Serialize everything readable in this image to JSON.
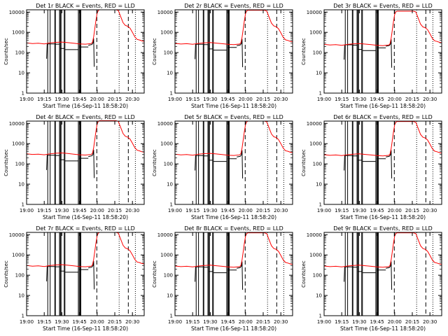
{
  "chart_data": {
    "type": "line",
    "layout": "3x3 grid",
    "xlabel": "Start Time (16-Sep-11 18:58:20)",
    "ylabel": "Counts/sec",
    "x_ticks": [
      "19:00",
      "19:15",
      "19:30",
      "19:45",
      "20:00",
      "20:15",
      "20:30"
    ],
    "x_tick_minutes": [
      0,
      15,
      30,
      45,
      60,
      75,
      90
    ],
    "xlim_minutes": [
      0,
      100
    ],
    "y_ticks": [
      "1",
      "10",
      "100",
      "1000",
      "10000"
    ],
    "y_tick_values": [
      1,
      10,
      100,
      1000,
      10000
    ],
    "ylim": [
      1,
      13000
    ],
    "log_y": true,
    "grid": false,
    "series_colors": {
      "events": "#000000",
      "lld": "#ff0000"
    },
    "events_minutes": [
      17,
      17.5,
      17.9,
      20
    ],
    "events_counts": [
      50,
      270,
      270,
      270
    ],
    "event_blocks": [
      {
        "start": 20,
        "end": 24,
        "counts": 270
      },
      {
        "start": 24.5,
        "end": 28,
        "counts": 260
      },
      {
        "start": 28.7,
        "end": 32,
        "counts": 160
      },
      {
        "start": 32.6,
        "end": 44,
        "counts": 140
      },
      {
        "start": 44.8,
        "end": 52.5,
        "counts": 190
      }
    ],
    "events_tail_minutes": [
      52.5,
      55.5,
      56.5,
      57,
      57.5
    ],
    "events_tail_counts": [
      230,
      250,
      300,
      500,
      20
    ],
    "lld_minutes": [
      0,
      5,
      10,
      15,
      20,
      25,
      30,
      35,
      40,
      45,
      50,
      55,
      56,
      57,
      58,
      59,
      60,
      61,
      62,
      64,
      66,
      68,
      70,
      72,
      74,
      76,
      78,
      80,
      82,
      84,
      86,
      88,
      90,
      92,
      94,
      96,
      98,
      100
    ],
    "lld_counts": [
      300,
      280,
      290,
      270,
      300,
      320,
      330,
      310,
      290,
      270,
      260,
      280,
      320,
      600,
      1500,
      4000,
      9000,
      12000,
      13000,
      13000,
      13000,
      13000,
      13000,
      13000,
      13000,
      13000,
      12000,
      6000,
      3000,
      2200,
      2000,
      1600,
      1000,
      600,
      450,
      420,
      380,
      360
    ],
    "vertical_lines": {
      "solid_minutes": [
        18,
        20,
        24,
        24.5,
        28,
        28.7,
        29.3,
        32,
        32.6,
        44,
        44.8,
        45.5,
        46.1
      ],
      "dashed_minutes": [
        59.7,
        86.5
      ],
      "dotted_minutes": [
        78.7,
        92.5
      ]
    },
    "panels": [
      {
        "title": "Det 1r BLACK = Events, RED = LLD",
        "events_scale": 1.0,
        "lld_scale": 1.0
      },
      {
        "title": "Det 2r BLACK = Events, RED = LLD",
        "events_scale": 0.95,
        "lld_scale": 0.95
      },
      {
        "title": "Det 3r BLACK = Events, RED = LLD",
        "events_scale": 0.9,
        "lld_scale": 0.85
      },
      {
        "title": "Det 4r BLACK = Events, RED = LLD",
        "events_scale": 1.0,
        "lld_scale": 1.05
      },
      {
        "title": "Det 5r BLACK = Events, RED = LLD",
        "events_scale": 0.95,
        "lld_scale": 1.0
      },
      {
        "title": "Det 6r BLACK = Events, RED = LLD",
        "events_scale": 0.95,
        "lld_scale": 0.95
      },
      {
        "title": "Det 7r BLACK = Events, RED = LLD",
        "events_scale": 1.0,
        "lld_scale": 1.0
      },
      {
        "title": "Det 8r BLACK = Events, RED = LLD",
        "events_scale": 0.95,
        "lld_scale": 0.95
      },
      {
        "title": "Det 9r BLACK = Events, RED = LLD",
        "events_scale": 0.95,
        "lld_scale": 0.95
      }
    ]
  }
}
